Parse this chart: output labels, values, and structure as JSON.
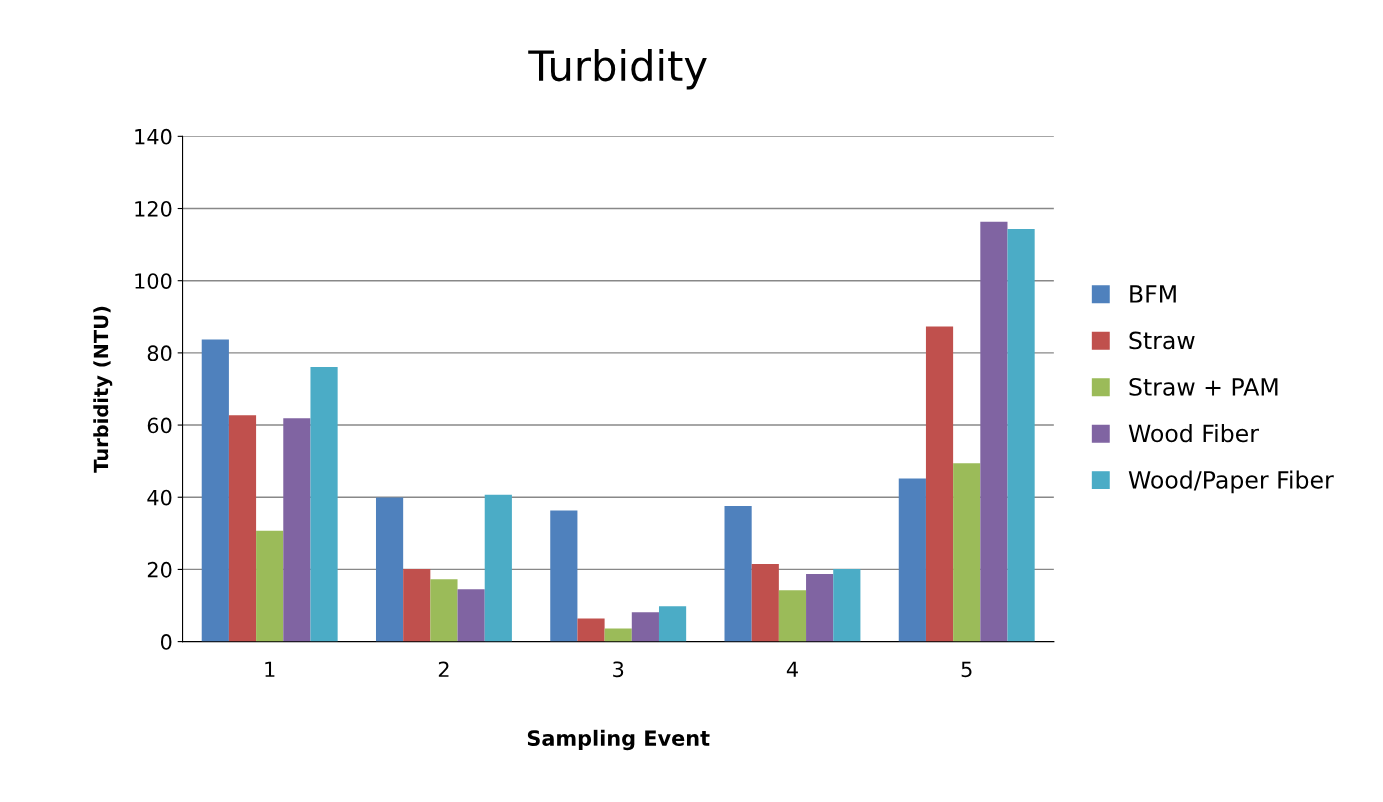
{
  "chart_data": {
    "type": "bar",
    "title": "Turbidity",
    "xlabel": "Sampling Event",
    "ylabel": "Turbidity (NTU)",
    "categories": [
      "1",
      "2",
      "3",
      "4",
      "5"
    ],
    "series": [
      {
        "name": "BFM",
        "color": "#4f81bd",
        "values": [
          83.7,
          39.9,
          36.3,
          37.6,
          45.2
        ]
      },
      {
        "name": "Straw",
        "color": "#c0504d",
        "values": [
          62.7,
          20.1,
          6.4,
          21.5,
          87.3
        ]
      },
      {
        "name": "Straw + PAM",
        "color": "#9bbb59",
        "values": [
          30.7,
          17.3,
          3.6,
          14.2,
          49.4
        ]
      },
      {
        "name": "Wood Fiber",
        "color": "#8064a2",
        "values": [
          61.9,
          14.5,
          8.1,
          18.7,
          116.3
        ]
      },
      {
        "name": "Wood/Paper Fiber",
        "color": "#4bacc6",
        "values": [
          76.1,
          40.7,
          9.8,
          20.1,
          114.3
        ]
      }
    ],
    "ylim": [
      0,
      140
    ],
    "yticks": [
      0,
      20,
      40,
      60,
      80,
      100,
      120,
      140
    ],
    "grid": "y",
    "legend": "right"
  }
}
